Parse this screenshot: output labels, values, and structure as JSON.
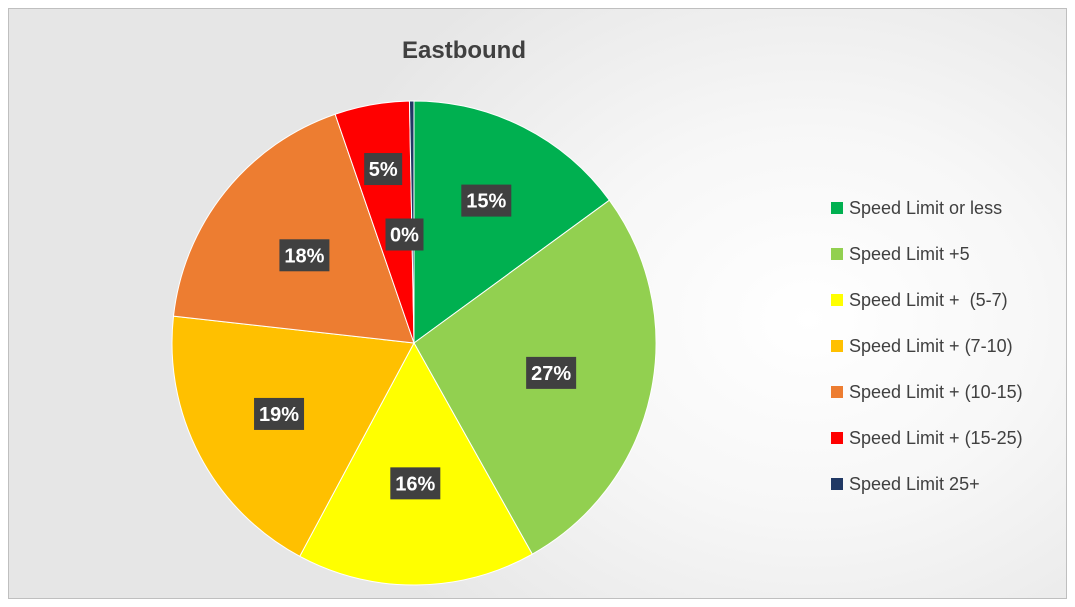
{
  "chart_data": {
    "type": "pie",
    "title": "Eastbound",
    "categories": [
      "Speed Limit or less",
      "Speed Limit +5",
      "Speed Limit +  (5-7)",
      "Speed Limit + (7-10)",
      "Speed Limit + (10-15)",
      "Speed Limit + (15-25)",
      "Speed Limit 25+"
    ],
    "values": [
      15,
      27,
      16,
      19,
      18,
      5,
      0.3
    ],
    "data_labels": [
      "15%",
      "27%",
      "16%",
      "19%",
      "18%",
      "5%",
      "0%"
    ],
    "colors": [
      "#00b050",
      "#92d050",
      "#ffff00",
      "#ffc000",
      "#ed7d31",
      "#ff0000",
      "#203864"
    ],
    "legend_position": "right",
    "start_angle": "12 o'clock, clockwise"
  }
}
